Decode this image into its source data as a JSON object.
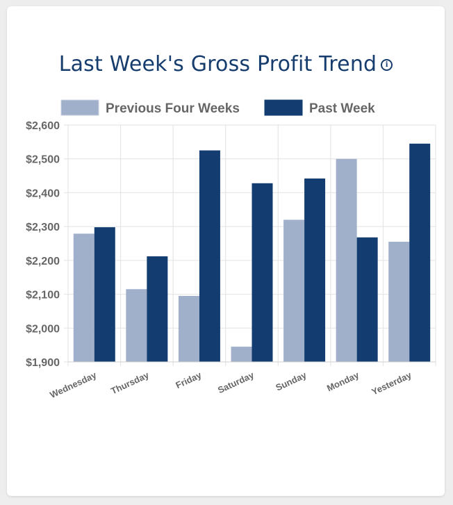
{
  "card": {
    "title": "Last Week's Gross Profit Trend",
    "info_icon": "i"
  },
  "colors": {
    "previous": "#a0b0cb",
    "past": "#133d70",
    "title": "#163d6e",
    "axis_text": "#666666",
    "grid": "#e2e2e2"
  },
  "icons": {
    "info": "info-icon"
  },
  "chart_data": {
    "type": "bar",
    "categories": [
      "Wednesday",
      "Thursday",
      "Friday",
      "Saturday",
      "Sunday",
      "Monday",
      "Yesterday"
    ],
    "series": [
      {
        "name": "Previous Four Weeks",
        "values": [
          2279,
          2115,
          2095,
          1945,
          2320,
          2500,
          2255
        ]
      },
      {
        "name": "Past Week",
        "values": [
          2298,
          2212,
          2525,
          2428,
          2442,
          2268,
          2545
        ]
      }
    ],
    "ylim": [
      1900,
      2600
    ],
    "yticks": [
      "$1,900",
      "$2,000",
      "$2,100",
      "$2,200",
      "$2,300",
      "$2,400",
      "$2,500",
      "$2,600"
    ],
    "legend": "top",
    "grid": true
  }
}
